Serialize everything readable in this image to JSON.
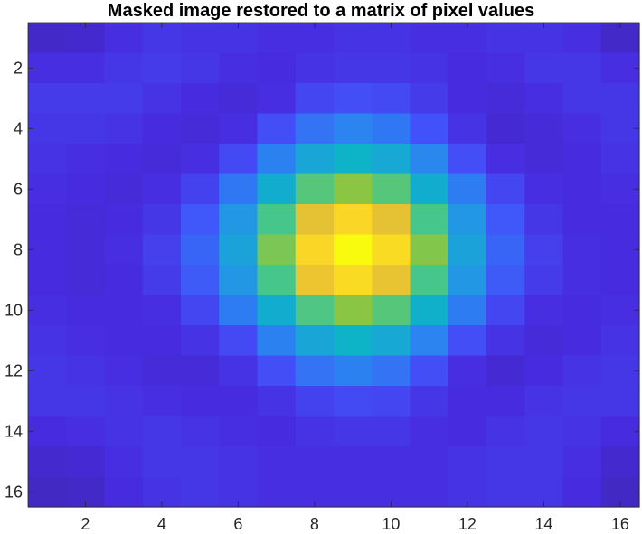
{
  "chart_data": {
    "type": "heatmap",
    "title": "Masked image restored to a matrix of pixel values",
    "xlabel": "",
    "ylabel": "",
    "colormap": "parula",
    "xlim": [
      0.5,
      16.5
    ],
    "ylim": [
      0.5,
      16.5
    ],
    "y_reversed": true,
    "xticks": [
      2,
      4,
      6,
      8,
      10,
      12,
      14,
      16
    ],
    "yticks": [
      2,
      4,
      6,
      8,
      10,
      12,
      14,
      16
    ],
    "grid": false,
    "values": [
      [
        0.06,
        0.07,
        0.11,
        0.13,
        0.12,
        0.12,
        0.11,
        0.11,
        0.12,
        0.12,
        0.11,
        0.11,
        0.12,
        0.12,
        0.11,
        0.06
      ],
      [
        0.11,
        0.11,
        0.13,
        0.14,
        0.13,
        0.11,
        0.1,
        0.12,
        0.13,
        0.13,
        0.12,
        0.1,
        0.11,
        0.13,
        0.13,
        0.11
      ],
      [
        0.14,
        0.14,
        0.14,
        0.12,
        0.1,
        0.09,
        0.11,
        0.17,
        0.19,
        0.18,
        0.14,
        0.1,
        0.09,
        0.11,
        0.13,
        0.13
      ],
      [
        0.13,
        0.13,
        0.12,
        0.1,
        0.09,
        0.11,
        0.19,
        0.27,
        0.31,
        0.28,
        0.2,
        0.12,
        0.08,
        0.09,
        0.11,
        0.13
      ],
      [
        0.12,
        0.11,
        0.1,
        0.09,
        0.11,
        0.18,
        0.3,
        0.43,
        0.48,
        0.44,
        0.32,
        0.19,
        0.11,
        0.09,
        0.1,
        0.12
      ],
      [
        0.11,
        0.1,
        0.09,
        0.11,
        0.16,
        0.28,
        0.46,
        0.63,
        0.7,
        0.63,
        0.46,
        0.29,
        0.17,
        0.11,
        0.1,
        0.11
      ],
      [
        0.1,
        0.09,
        0.1,
        0.13,
        0.21,
        0.38,
        0.61,
        0.84,
        0.92,
        0.84,
        0.61,
        0.38,
        0.21,
        0.13,
        0.1,
        0.1
      ],
      [
        0.1,
        0.09,
        0.11,
        0.15,
        0.24,
        0.42,
        0.68,
        0.92,
        1.0,
        0.93,
        0.69,
        0.42,
        0.24,
        0.15,
        0.11,
        0.1
      ],
      [
        0.1,
        0.09,
        0.1,
        0.14,
        0.22,
        0.38,
        0.61,
        0.86,
        0.93,
        0.85,
        0.61,
        0.38,
        0.22,
        0.14,
        0.11,
        0.1
      ],
      [
        0.11,
        0.1,
        0.1,
        0.11,
        0.17,
        0.29,
        0.46,
        0.62,
        0.7,
        0.63,
        0.47,
        0.29,
        0.17,
        0.11,
        0.1,
        0.11
      ],
      [
        0.12,
        0.11,
        0.1,
        0.1,
        0.12,
        0.18,
        0.3,
        0.43,
        0.48,
        0.44,
        0.31,
        0.19,
        0.12,
        0.09,
        0.1,
        0.12
      ],
      [
        0.13,
        0.12,
        0.11,
        0.09,
        0.09,
        0.12,
        0.19,
        0.27,
        0.3,
        0.27,
        0.19,
        0.11,
        0.08,
        0.1,
        0.12,
        0.13
      ],
      [
        0.13,
        0.13,
        0.12,
        0.11,
        0.1,
        0.1,
        0.12,
        0.16,
        0.18,
        0.17,
        0.13,
        0.1,
        0.1,
        0.12,
        0.13,
        0.13
      ],
      [
        0.1,
        0.11,
        0.12,
        0.13,
        0.12,
        0.11,
        0.1,
        0.12,
        0.13,
        0.13,
        0.11,
        0.1,
        0.12,
        0.13,
        0.12,
        0.1
      ],
      [
        0.07,
        0.08,
        0.11,
        0.13,
        0.13,
        0.12,
        0.11,
        0.11,
        0.11,
        0.11,
        0.11,
        0.12,
        0.13,
        0.13,
        0.11,
        0.07
      ],
      [
        0.05,
        0.06,
        0.1,
        0.12,
        0.13,
        0.12,
        0.11,
        0.11,
        0.11,
        0.11,
        0.11,
        0.12,
        0.13,
        0.13,
        0.1,
        0.05
      ]
    ]
  }
}
